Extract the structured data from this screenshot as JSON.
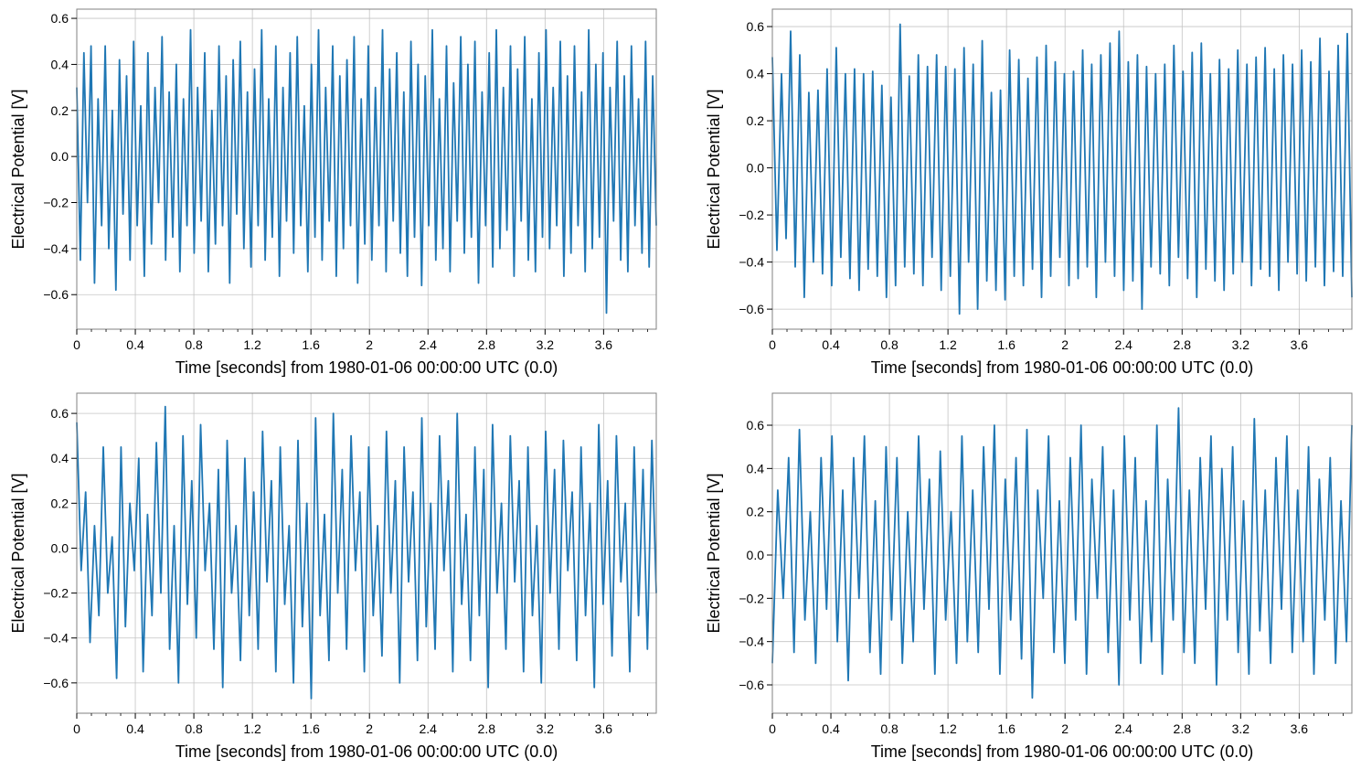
{
  "chart_data": [
    {
      "type": "line",
      "xlabel": "Time [seconds] from 1980-01-06 00:00:00 UTC (0.0)",
      "ylabel": "Electrical Potential [V]",
      "xlim": [
        0,
        3.96
      ],
      "ylim": [
        -0.75,
        0.64
      ],
      "xticks": [
        0,
        0.4,
        0.8,
        1.2,
        1.6,
        2,
        2.4,
        2.8,
        3.2,
        3.6
      ],
      "xtick_labels": [
        "0",
        "0.4",
        "0.8",
        "1.2",
        "1.6",
        "2",
        "2.4",
        "2.8",
        "3.2",
        "3.6"
      ],
      "yticks": [
        -0.6,
        -0.4,
        -0.2,
        0,
        0.2,
        0.4,
        0.6
      ],
      "ytick_labels": [
        "−0.6",
        "−0.4",
        "−0.2",
        "0.0",
        "0.2",
        "0.4",
        "0.6"
      ],
      "grid": true,
      "color": "#1f77b4",
      "values": [
        0.3,
        -0.45,
        0.45,
        -0.2,
        0.48,
        -0.55,
        0.25,
        -0.3,
        0.48,
        -0.4,
        0.2,
        -0.58,
        0.42,
        -0.25,
        0.35,
        -0.45,
        0.5,
        -0.3,
        0.22,
        -0.52,
        0.45,
        -0.38,
        0.3,
        -0.2,
        0.52,
        -0.45,
        0.28,
        -0.35,
        0.4,
        -0.5,
        0.25,
        -0.3,
        0.55,
        -0.42,
        0.3,
        -0.28,
        0.45,
        -0.5,
        0.2,
        -0.38,
        0.48,
        -0.3,
        0.35,
        -0.55,
        0.42,
        -0.25,
        0.5,
        -0.4,
        0.28,
        -0.48,
        0.38,
        -0.3,
        0.55,
        -0.45,
        0.25,
        -0.35,
        0.48,
        -0.52,
        0.3,
        -0.28,
        0.45,
        -0.42,
        0.52,
        -0.3,
        0.22,
        -0.5,
        0.4,
        -0.35,
        0.55,
        -0.45,
        0.3,
        -0.28,
        0.48,
        -0.52,
        0.35,
        -0.4,
        0.42,
        -0.3,
        0.52,
        -0.55,
        0.25,
        -0.38,
        0.48,
        -0.45,
        0.3,
        -0.3,
        0.55,
        -0.5,
        0.38,
        -0.28,
        0.45,
        -0.42,
        0.28,
        -0.52,
        0.5,
        -0.35,
        0.4,
        -0.56,
        0.35,
        -0.3,
        0.55,
        -0.45,
        0.25,
        -0.4,
        0.48,
        -0.5,
        0.32,
        -0.28,
        0.52,
        -0.42,
        0.4,
        -0.35,
        0.5,
        -0.55,
        0.28,
        -0.3,
        0.45,
        -0.48,
        0.55,
        -0.4,
        0.3,
        -0.32,
        0.48,
        -0.52,
        0.38,
        -0.28,
        0.52,
        -0.45,
        0.25,
        -0.5,
        0.45,
        -0.35,
        0.55,
        -0.4,
        0.3,
        -0.3,
        0.5,
        -0.52,
        0.35,
        -0.42,
        0.48,
        -0.3,
        0.28,
        -0.5,
        0.55,
        -0.4,
        0.4,
        -0.35,
        0.45,
        -0.68,
        0.3,
        -0.28,
        0.5,
        -0.45,
        0.35,
        -0.5,
        0.48,
        -0.3,
        0.25,
        -0.42,
        0.5,
        -0.48,
        0.35,
        -0.3
      ]
    },
    {
      "type": "line",
      "xlabel": "Time [seconds] from 1980-01-06 00:00:00 UTC (0.0)",
      "ylabel": "Electrical Potential [V]",
      "xlim": [
        0,
        3.96
      ],
      "ylim": [
        -0.685,
        0.674
      ],
      "xticks": [
        0,
        0.4,
        0.8,
        1.2,
        1.6,
        2,
        2.4,
        2.8,
        3.2,
        3.6
      ],
      "xtick_labels": [
        "0",
        "0.4",
        "0.8",
        "1.2",
        "1.6",
        "2",
        "2.4",
        "2.8",
        "3.2",
        "3.6"
      ],
      "yticks": [
        -0.6,
        -0.4,
        -0.2,
        0,
        0.2,
        0.4,
        0.6
      ],
      "ytick_labels": [
        "−0.6",
        "−0.4",
        "−0.2",
        "0.0",
        "0.2",
        "0.4",
        "0.6"
      ],
      "grid": true,
      "color": "#1f77b4",
      "values": [
        0.47,
        -0.35,
        0.4,
        -0.3,
        0.58,
        -0.42,
        0.48,
        -0.55,
        0.32,
        -0.4,
        0.33,
        -0.45,
        0.42,
        -0.5,
        0.51,
        -0.38,
        0.4,
        -0.47,
        0.42,
        -0.52,
        0.4,
        -0.43,
        0.41,
        -0.46,
        0.35,
        -0.55,
        0.3,
        -0.5,
        0.61,
        -0.42,
        0.39,
        -0.45,
        0.48,
        -0.5,
        0.43,
        -0.38,
        0.48,
        -0.52,
        0.43,
        -0.46,
        0.42,
        -0.62,
        0.51,
        -0.4,
        0.44,
        -0.6,
        0.54,
        -0.48,
        0.32,
        -0.52,
        0.33,
        -0.56,
        0.5,
        -0.46,
        0.46,
        -0.5,
        0.38,
        -0.43,
        0.47,
        -0.55,
        0.52,
        -0.46,
        0.45,
        -0.38,
        0.4,
        -0.5,
        0.41,
        -0.47,
        0.5,
        -0.42,
        0.44,
        -0.55,
        0.48,
        -0.4,
        0.53,
        -0.46,
        0.58,
        -0.52,
        0.45,
        -0.48,
        0.48,
        -0.6,
        0.43,
        -0.42,
        0.4,
        -0.45,
        0.44,
        -0.5,
        0.52,
        -0.38,
        0.41,
        -0.47,
        0.49,
        -0.55,
        0.53,
        -0.43,
        0.4,
        -0.48,
        0.46,
        -0.52,
        0.42,
        -0.45,
        0.5,
        -0.4,
        0.44,
        -0.5,
        0.47,
        -0.43,
        0.51,
        -0.46,
        0.42,
        -0.52,
        0.48,
        -0.4,
        0.44,
        -0.45,
        0.5,
        -0.48,
        0.45,
        -0.42,
        0.55,
        -0.5,
        0.41,
        -0.44,
        0.52,
        -0.46,
        0.57,
        -0.55
      ]
    },
    {
      "type": "line",
      "xlabel": "Time [seconds] from 1980-01-06 00:00:00 UTC (0.0)",
      "ylabel": "Electrical Potential [V]",
      "xlim": [
        0,
        3.96
      ],
      "ylim": [
        -0.735,
        0.69
      ],
      "xticks": [
        0,
        0.4,
        0.8,
        1.2,
        1.6,
        2,
        2.4,
        2.8,
        3.2,
        3.6
      ],
      "xtick_labels": [
        "0",
        "0.4",
        "0.8",
        "1.2",
        "1.6",
        "2",
        "2.4",
        "2.8",
        "3.2",
        "3.6"
      ],
      "yticks": [
        -0.6,
        -0.4,
        -0.2,
        0,
        0.2,
        0.4,
        0.6
      ],
      "ytick_labels": [
        "−0.6",
        "−0.4",
        "−0.2",
        "0.0",
        "0.2",
        "0.4",
        "0.6"
      ],
      "grid": true,
      "color": "#1f77b4",
      "values": [
        0.56,
        -0.1,
        0.25,
        -0.42,
        0.1,
        -0.3,
        0.45,
        -0.2,
        0.05,
        -0.58,
        0.45,
        -0.35,
        0.2,
        -0.1,
        0.4,
        -0.55,
        0.15,
        -0.3,
        0.47,
        -0.2,
        0.63,
        -0.45,
        0.1,
        -0.6,
        0.5,
        -0.25,
        0.3,
        -0.4,
        0.55,
        -0.1,
        0.2,
        -0.45,
        0.35,
        -0.62,
        0.48,
        -0.2,
        0.1,
        -0.5,
        0.4,
        -0.3,
        0.25,
        -0.45,
        0.52,
        -0.15,
        0.3,
        -0.55,
        0.45,
        -0.25,
        0.1,
        -0.6,
        0.48,
        -0.35,
        0.2,
        -0.67,
        0.58,
        -0.3,
        0.15,
        -0.5,
        0.6,
        -0.2,
        0.35,
        -0.45,
        0.5,
        -0.1,
        0.25,
        -0.55,
        0.45,
        -0.3,
        0.1,
        -0.48,
        0.52,
        -0.2,
        0.3,
        -0.6,
        0.45,
        -0.15,
        0.25,
        -0.5,
        0.58,
        -0.35,
        0.2,
        -0.45,
        0.5,
        -0.1,
        0.3,
        -0.55,
        0.6,
        -0.25,
        0.15,
        -0.5,
        0.45,
        -0.3,
        0.35,
        -0.62,
        0.55,
        -0.2,
        0.2,
        -0.45,
        0.5,
        -0.15,
        0.3,
        -0.55,
        0.45,
        -0.3,
        0.1,
        -0.6,
        0.52,
        -0.2,
        0.35,
        -0.45,
        0.48,
        -0.1,
        0.25,
        -0.5,
        0.45,
        -0.3,
        0.2,
        -0.62,
        0.55,
        -0.25,
        0.3,
        -0.48,
        0.5,
        -0.15,
        0.2,
        -0.55,
        0.45,
        -0.3,
        0.35,
        -0.45,
        0.48,
        -0.2
      ]
    },
    {
      "type": "line",
      "xlabel": "Time [seconds] from 1980-01-06 00:00:00 UTC (0.0)",
      "ylabel": "Electrical Potential [V]",
      "xlim": [
        0,
        3.96
      ],
      "ylim": [
        -0.731,
        0.748
      ],
      "xticks": [
        0,
        0.4,
        0.8,
        1.2,
        1.6,
        2,
        2.4,
        2.8,
        3.2,
        3.6
      ],
      "xtick_labels": [
        "0",
        "0.4",
        "0.8",
        "1.2",
        "1.6",
        "2",
        "2.4",
        "2.8",
        "3.2",
        "3.6"
      ],
      "yticks": [
        -0.6,
        -0.4,
        -0.2,
        0,
        0.2,
        0.4,
        0.6
      ],
      "ytick_labels": [
        "−0.6",
        "−0.4",
        "−0.2",
        "0.0",
        "0.2",
        "0.4",
        "0.6"
      ],
      "grid": true,
      "color": "#1f77b4",
      "values": [
        -0.5,
        0.3,
        -0.2,
        0.45,
        -0.45,
        0.58,
        -0.3,
        0.2,
        -0.5,
        0.45,
        -0.25,
        0.55,
        -0.4,
        0.3,
        -0.58,
        0.45,
        -0.2,
        0.55,
        -0.45,
        0.25,
        -0.55,
        0.5,
        -0.3,
        0.45,
        -0.5,
        0.2,
        -0.4,
        0.55,
        -0.25,
        0.35,
        -0.55,
        0.48,
        -0.3,
        0.2,
        -0.5,
        0.55,
        -0.4,
        0.3,
        -0.45,
        0.5,
        -0.25,
        0.6,
        -0.55,
        0.35,
        -0.3,
        0.45,
        -0.48,
        0.58,
        -0.66,
        0.3,
        -0.2,
        0.55,
        -0.45,
        0.25,
        -0.5,
        0.45,
        -0.3,
        0.6,
        -0.55,
        0.35,
        -0.2,
        0.5,
        -0.45,
        0.3,
        -0.6,
        0.55,
        -0.3,
        0.45,
        -0.5,
        0.25,
        -0.4,
        0.6,
        -0.55,
        0.35,
        -0.3,
        0.68,
        -0.45,
        0.3,
        -0.5,
        0.45,
        -0.25,
        0.55,
        -0.6,
        0.4,
        -0.3,
        0.5,
        -0.45,
        0.25,
        -0.55,
        0.63,
        -0.35,
        0.3,
        -0.5,
        0.45,
        -0.25,
        0.55,
        -0.45,
        0.3,
        -0.4,
        0.5,
        -0.55,
        0.35,
        -0.3,
        0.45,
        -0.5,
        0.25,
        -0.4,
        0.6
      ]
    }
  ]
}
